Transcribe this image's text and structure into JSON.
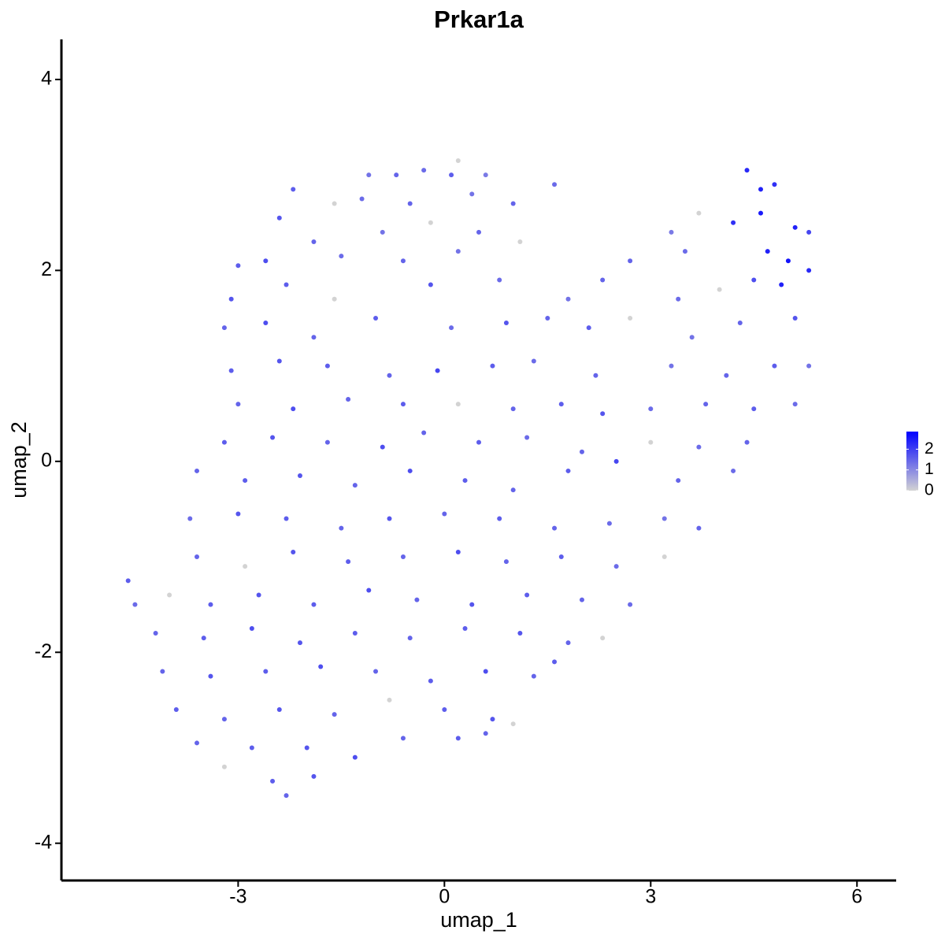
{
  "chart_data": {
    "type": "scatter",
    "title": "Prkar1a",
    "x_label": "umap_1",
    "y_label": "umap_2",
    "xlim": [
      -5.57,
      6.57
    ],
    "ylim": [
      -4.39,
      4.42
    ],
    "xticks": [
      -3,
      0,
      3,
      6
    ],
    "yticks": [
      -4,
      -2,
      0,
      2,
      4
    ],
    "grid": false,
    "colorbar": {
      "low": "#d3d3d3",
      "high": "#0000ff",
      "lim": [
        0,
        2.85
      ],
      "ticks": [
        0,
        1,
        2
      ]
    },
    "x": [
      -0.3,
      0.1,
      0.2,
      0.6,
      -1.1,
      -0.7,
      -2.2,
      -1.6,
      -1.2,
      -0.5,
      0.4,
      1.0,
      1.6,
      4.4,
      4.6,
      4.8,
      -2.4,
      -1.9,
      -0.9,
      -0.2,
      0.5,
      3.3,
      3.7,
      4.2,
      4.6,
      5.1,
      5.3,
      -3.0,
      -2.6,
      -1.5,
      -0.6,
      0.2,
      1.1,
      2.7,
      3.5,
      4.7,
      5.0,
      5.3,
      -3.1,
      -2.3,
      -1.6,
      -0.2,
      0.8,
      1.8,
      2.3,
      3.4,
      4.0,
      4.9,
      4.5,
      -3.2,
      -2.6,
      -1.9,
      -1.0,
      0.1,
      0.9,
      1.5,
      2.1,
      2.7,
      3.6,
      4.3,
      5.1,
      -3.1,
      -2.4,
      -1.7,
      -0.8,
      -0.1,
      0.7,
      1.3,
      2.2,
      3.3,
      4.1,
      4.8,
      5.3,
      -3.0,
      -2.2,
      -1.4,
      -0.6,
      0.2,
      1.0,
      1.7,
      2.3,
      3.0,
      3.8,
      4.5,
      5.1,
      -3.2,
      -2.5,
      -1.7,
      -0.9,
      -0.3,
      0.5,
      1.2,
      2.0,
      3.0,
      3.7,
      4.4,
      -3.6,
      -2.9,
      -2.1,
      -1.3,
      -0.5,
      0.3,
      1.0,
      1.8,
      2.5,
      3.4,
      4.2,
      -3.7,
      -3.0,
      -2.3,
      -1.5,
      -0.8,
      0.0,
      0.8,
      1.6,
      2.4,
      3.2,
      3.7,
      -3.6,
      -2.9,
      -2.2,
      -1.4,
      -0.6,
      0.2,
      0.9,
      1.7,
      2.5,
      3.2,
      -4.6,
      -4.0,
      -3.4,
      -2.7,
      -1.9,
      -1.1,
      -0.4,
      0.4,
      1.2,
      2.0,
      2.7,
      -4.5,
      -4.2,
      -3.5,
      -2.8,
      -2.1,
      -1.3,
      -0.5,
      0.3,
      1.1,
      1.8,
      2.3,
      -4.1,
      -3.4,
      -2.6,
      -1.8,
      -1.0,
      -0.2,
      0.6,
      1.3,
      1.6,
      -3.9,
      -3.2,
      -2.4,
      -1.6,
      -0.8,
      0.0,
      0.7,
      1.0,
      -3.6,
      -2.8,
      -2.0,
      -1.3,
      -0.6,
      0.2,
      0.6,
      -3.2,
      -2.5,
      -2.3,
      -1.9
    ],
    "y": [
      3.05,
      3.0,
      3.15,
      3.0,
      3.0,
      3.0,
      2.85,
      2.7,
      2.75,
      2.7,
      2.8,
      2.7,
      2.9,
      3.05,
      2.85,
      2.9,
      2.55,
      2.3,
      2.4,
      2.5,
      2.4,
      2.4,
      2.6,
      2.5,
      2.6,
      2.45,
      2.4,
      2.05,
      2.1,
      2.15,
      2.1,
      2.2,
      2.3,
      2.1,
      2.2,
      2.2,
      2.1,
      2.0,
      1.7,
      1.85,
      1.7,
      1.85,
      1.9,
      1.7,
      1.9,
      1.7,
      1.8,
      1.85,
      1.9,
      1.4,
      1.45,
      1.3,
      1.5,
      1.4,
      1.45,
      1.5,
      1.4,
      1.5,
      1.3,
      1.45,
      1.5,
      0.95,
      1.05,
      1.0,
      0.9,
      0.95,
      1.0,
      1.05,
      0.9,
      1.0,
      0.9,
      1.0,
      1.0,
      0.6,
      0.55,
      0.65,
      0.6,
      0.6,
      0.55,
      0.6,
      0.5,
      0.55,
      0.6,
      0.55,
      0.6,
      0.2,
      0.25,
      0.2,
      0.15,
      0.3,
      0.2,
      0.25,
      0.1,
      0.2,
      0.15,
      0.2,
      -0.1,
      -0.2,
      -0.15,
      -0.25,
      -0.1,
      -0.2,
      -0.3,
      -0.1,
      0.0,
      -0.2,
      -0.1,
      -0.6,
      -0.55,
      -0.6,
      -0.7,
      -0.6,
      -0.55,
      -0.6,
      -0.7,
      -0.65,
      -0.6,
      -0.7,
      -1.0,
      -1.1,
      -0.95,
      -1.05,
      -1.0,
      -0.95,
      -1.05,
      -1.0,
      -1.1,
      -1.0,
      -1.25,
      -1.4,
      -1.5,
      -1.4,
      -1.5,
      -1.35,
      -1.45,
      -1.5,
      -1.4,
      -1.45,
      -1.5,
      -1.5,
      -1.8,
      -1.85,
      -1.75,
      -1.9,
      -1.8,
      -1.85,
      -1.75,
      -1.8,
      -1.9,
      -1.85,
      -2.2,
      -2.25,
      -2.2,
      -2.15,
      -2.2,
      -2.3,
      -2.2,
      -2.25,
      -2.1,
      -2.6,
      -2.7,
      -2.6,
      -2.65,
      -2.5,
      -2.6,
      -2.7,
      -2.75,
      -2.95,
      -3.0,
      -3.0,
      -3.1,
      -2.9,
      -2.9,
      -2.85,
      -3.2,
      -3.35,
      -3.5,
      -3.3
    ],
    "values": [
      1.4,
      1.6,
      0,
      1.2,
      1.3,
      1.5,
      1.6,
      0,
      1.4,
      1.5,
      1.3,
      1.5,
      1.4,
      2.3,
      2.4,
      2.2,
      1.7,
      1.5,
      1.3,
      0,
      1.5,
      1.2,
      0,
      2.2,
      2.5,
      2.4,
      1.9,
      1.6,
      1.8,
      1.4,
      1.5,
      1.3,
      0,
      1.5,
      1.4,
      2.4,
      2.6,
      2.3,
      1.7,
      1.6,
      0,
      1.7,
      1.4,
      1.3,
      1.5,
      1.4,
      0,
      2.4,
      1.8,
      1.5,
      1.8,
      1.5,
      1.6,
      1.4,
      1.7,
      1.5,
      1.6,
      0,
      1.3,
      1.5,
      1.7,
      1.6,
      1.7,
      1.6,
      1.5,
      1.9,
      1.6,
      1.4,
      1.5,
      1.3,
      1.5,
      1.6,
      1.3,
      1.5,
      1.8,
      1.5,
      1.6,
      0,
      1.5,
      1.6,
      1.7,
      1.4,
      1.5,
      1.6,
      1.4,
      1.6,
      1.7,
      1.5,
      1.8,
      1.5,
      1.6,
      1.4,
      1.5,
      0,
      1.4,
      1.5,
      1.5,
      1.6,
      1.7,
      1.5,
      1.8,
      1.6,
      1.5,
      1.6,
      1.9,
      1.5,
      1.4,
      1.4,
      1.7,
      1.6,
      1.5,
      1.7,
      1.5,
      1.6,
      1.5,
      1.4,
      1.3,
      1.5,
      1.5,
      0,
      1.7,
      1.6,
      1.5,
      1.8,
      1.5,
      1.6,
      1.4,
      0,
      1.6,
      0,
      1.6,
      1.7,
      1.6,
      1.8,
      1.5,
      1.7,
      1.6,
      1.5,
      1.4,
      1.4,
      1.5,
      1.6,
      1.8,
      1.7,
      1.6,
      1.5,
      1.6,
      1.7,
      1.5,
      0,
      1.5,
      1.7,
      1.6,
      1.8,
      1.5,
      1.6,
      1.8,
      1.5,
      1.6,
      1.6,
      1.5,
      1.7,
      1.5,
      0,
      1.6,
      1.7,
      0,
      1.5,
      1.6,
      1.7,
      1.8,
      1.5,
      1.6,
      1.5,
      0,
      1.6,
      1.5,
      1.7
    ]
  }
}
